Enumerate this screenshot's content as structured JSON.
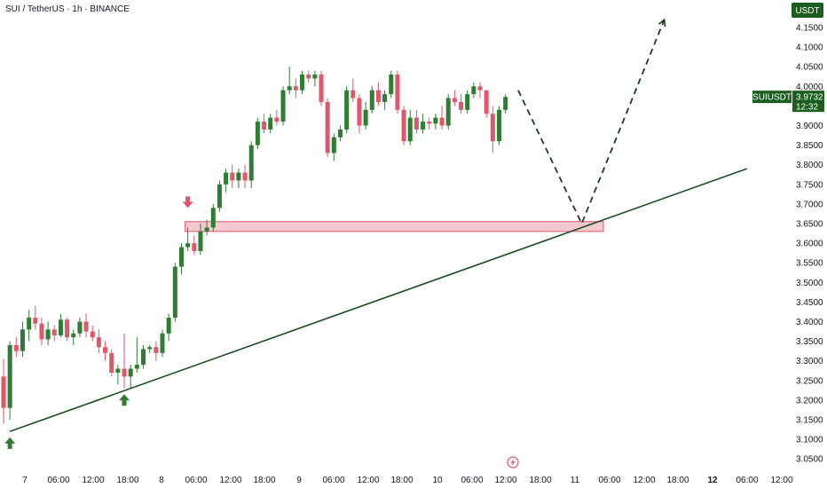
{
  "header": {
    "symbol_title": "SUI / TetherUS · 1h · BINANCE"
  },
  "price_axis": {
    "currency_label": "USDT",
    "ticks": [
      "4.1500",
      "4.1000",
      "4.0500",
      "4.0000",
      "3.9500",
      "3.9000",
      "3.8500",
      "3.8000",
      "3.7500",
      "3.7000",
      "3.6500",
      "3.6000",
      "3.5500",
      "3.5000",
      "3.4500",
      "3.4000",
      "3.3500",
      "3.3000",
      "3.2500",
      "3.2000",
      "3.1500",
      "3.1000",
      "3.0500"
    ],
    "last_price_symbol": "SUIUSDT",
    "last_price": "3.9732",
    "countdown": "12:32"
  },
  "time_axis": {
    "ticks": [
      {
        "label": "7",
        "bold": false
      },
      {
        "label": "06:00",
        "bold": false
      },
      {
        "label": "12:00",
        "bold": false
      },
      {
        "label": "18:00",
        "bold": false
      },
      {
        "label": "8",
        "bold": false
      },
      {
        "label": "06:00",
        "bold": false
      },
      {
        "label": "12:00",
        "bold": false
      },
      {
        "label": "18:00",
        "bold": false
      },
      {
        "label": "9",
        "bold": false
      },
      {
        "label": "06:00",
        "bold": false
      },
      {
        "label": "12:00",
        "bold": false
      },
      {
        "label": "18:00",
        "bold": false
      },
      {
        "label": "10",
        "bold": false
      },
      {
        "label": "06:00",
        "bold": false
      },
      {
        "label": "12:00",
        "bold": false
      },
      {
        "label": "18:00",
        "bold": false
      },
      {
        "label": "11",
        "bold": false
      },
      {
        "label": "06:00",
        "bold": false
      },
      {
        "label": "12:00",
        "bold": false
      },
      {
        "label": "18:00",
        "bold": false
      },
      {
        "label": "12",
        "bold": true
      },
      {
        "label": "06:00",
        "bold": false
      },
      {
        "label": "12:00",
        "bold": false
      }
    ],
    "event_icon": "lightning-icon"
  },
  "colors": {
    "bull": "#2e7d32",
    "bear": "#e0566b",
    "zone_fill": "#f3b8c0",
    "zone_stroke": "#e0566b",
    "trendline": "#1b4d22",
    "projection": "#1b3d1f",
    "badge_bg": "#1b5e20"
  },
  "chart_data": {
    "type": "candlestick",
    "title": "SUI / TetherUS · 1h · BINANCE",
    "ylim": [
      3.04,
      4.18
    ],
    "candle_interval_hours": 2,
    "candles": [
      [
        3.26,
        3.305,
        3.14,
        3.18
      ],
      [
        3.18,
        3.35,
        3.15,
        3.34
      ],
      [
        3.34,
        3.36,
        3.31,
        3.325
      ],
      [
        3.325,
        3.4,
        3.31,
        3.38
      ],
      [
        3.38,
        3.43,
        3.35,
        3.41
      ],
      [
        3.41,
        3.44,
        3.38,
        3.395
      ],
      [
        3.395,
        3.41,
        3.34,
        3.355
      ],
      [
        3.355,
        3.4,
        3.34,
        3.38
      ],
      [
        3.38,
        3.39,
        3.35,
        3.365
      ],
      [
        3.365,
        3.42,
        3.36,
        3.405
      ],
      [
        3.405,
        3.41,
        3.35,
        3.36
      ],
      [
        3.36,
        3.38,
        3.34,
        3.37
      ],
      [
        3.37,
        3.41,
        3.36,
        3.4
      ],
      [
        3.4,
        3.42,
        3.36,
        3.375
      ],
      [
        3.375,
        3.39,
        3.35,
        3.36
      ],
      [
        3.36,
        3.38,
        3.32,
        3.335
      ],
      [
        3.335,
        3.35,
        3.3,
        3.32
      ],
      [
        3.32,
        3.33,
        3.26,
        3.27
      ],
      [
        3.27,
        3.29,
        3.24,
        3.28
      ],
      [
        3.28,
        3.37,
        3.23,
        3.26
      ],
      [
        3.26,
        3.29,
        3.23,
        3.28
      ],
      [
        3.28,
        3.36,
        3.27,
        3.29
      ],
      [
        3.29,
        3.34,
        3.28,
        3.33
      ],
      [
        3.33,
        3.34,
        3.32,
        3.335
      ],
      [
        3.335,
        3.35,
        3.3,
        3.32
      ],
      [
        3.32,
        3.38,
        3.31,
        3.37
      ],
      [
        3.37,
        3.42,
        3.35,
        3.41
      ],
      [
        3.41,
        3.55,
        3.4,
        3.54
      ],
      [
        3.54,
        3.6,
        3.52,
        3.59
      ],
      [
        3.59,
        3.64,
        3.58,
        3.6
      ],
      [
        3.6,
        3.62,
        3.57,
        3.58
      ],
      [
        3.58,
        3.65,
        3.57,
        3.63
      ],
      [
        3.63,
        3.66,
        3.62,
        3.64
      ],
      [
        3.64,
        3.7,
        3.63,
        3.69
      ],
      [
        3.69,
        3.76,
        3.68,
        3.75
      ],
      [
        3.75,
        3.79,
        3.73,
        3.78
      ],
      [
        3.78,
        3.8,
        3.74,
        3.76
      ],
      [
        3.76,
        3.79,
        3.74,
        3.78
      ],
      [
        3.78,
        3.8,
        3.74,
        3.76
      ],
      [
        3.76,
        3.86,
        3.74,
        3.85
      ],
      [
        3.85,
        3.92,
        3.84,
        3.91
      ],
      [
        3.91,
        3.93,
        3.88,
        3.89
      ],
      [
        3.89,
        3.93,
        3.88,
        3.92
      ],
      [
        3.92,
        3.94,
        3.9,
        3.91
      ],
      [
        3.91,
        4.0,
        3.9,
        3.99
      ],
      [
        3.99,
        4.05,
        3.98,
        4.0
      ],
      [
        4.0,
        4.02,
        3.97,
        3.99
      ],
      [
        3.99,
        4.04,
        3.98,
        4.03
      ],
      [
        4.03,
        4.04,
        4.01,
        4.02
      ],
      [
        4.02,
        4.04,
        4.0,
        4.03
      ],
      [
        4.03,
        4.04,
        3.95,
        3.96
      ],
      [
        3.96,
        3.97,
        3.82,
        3.83
      ],
      [
        3.83,
        3.88,
        3.81,
        3.87
      ],
      [
        3.87,
        3.9,
        3.86,
        3.89
      ],
      [
        3.89,
        4.0,
        3.88,
        3.99
      ],
      [
        3.99,
        4.02,
        3.96,
        3.97
      ],
      [
        3.97,
        3.98,
        3.88,
        3.9
      ],
      [
        3.9,
        3.96,
        3.89,
        3.94
      ],
      [
        3.94,
        4.0,
        3.93,
        3.99
      ],
      [
        3.99,
        4.01,
        3.95,
        3.96
      ],
      [
        3.96,
        3.99,
        3.94,
        3.98
      ],
      [
        3.98,
        4.04,
        3.97,
        4.03
      ],
      [
        4.03,
        4.04,
        3.93,
        3.94
      ],
      [
        3.94,
        3.95,
        3.85,
        3.86
      ],
      [
        3.86,
        3.94,
        3.85,
        3.92
      ],
      [
        3.92,
        3.94,
        3.88,
        3.89
      ],
      [
        3.89,
        3.93,
        3.88,
        3.91
      ],
      [
        3.91,
        3.92,
        3.89,
        3.905
      ],
      [
        3.905,
        3.93,
        3.89,
        3.92
      ],
      [
        3.92,
        3.95,
        3.89,
        3.9
      ],
      [
        3.9,
        3.98,
        3.89,
        3.97
      ],
      [
        3.97,
        3.99,
        3.95,
        3.96
      ],
      [
        3.96,
        3.98,
        3.93,
        3.94
      ],
      [
        3.94,
        3.99,
        3.93,
        3.98
      ],
      [
        3.98,
        4.01,
        3.97,
        4.0
      ],
      [
        4.0,
        4.01,
        3.97,
        3.99
      ],
      [
        3.99,
        3.99,
        3.92,
        3.93
      ],
      [
        3.93,
        3.95,
        3.83,
        3.86
      ],
      [
        3.86,
        3.95,
        3.85,
        3.94
      ],
      [
        3.94,
        3.98,
        3.93,
        3.973
      ]
    ],
    "support_zone": {
      "from_index": 29,
      "to_index": 94,
      "top": 3.655,
      "bottom": 3.63
    },
    "trendline": {
      "from": [
        1,
        3.12
      ],
      "to": [
        117,
        3.79
      ]
    },
    "projection": [
      [
        81,
        3.99
      ],
      [
        91,
        3.65
      ],
      [
        104,
        4.17
      ]
    ],
    "markers": [
      {
        "type": "arrow-up",
        "index": 1,
        "price": 3.105
      },
      {
        "type": "arrow-up",
        "index": 19,
        "price": 3.215
      },
      {
        "type": "arrow-down",
        "index": 29,
        "price": 3.69
      }
    ]
  }
}
